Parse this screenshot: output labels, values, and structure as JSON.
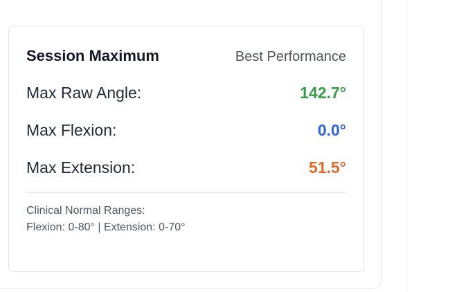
{
  "card": {
    "title": "Session Maximum",
    "subtitle": "Best Performance",
    "metrics": [
      {
        "label": "Max Raw Angle:",
        "value": "142.7°",
        "color": "#3a9b4b"
      },
      {
        "label": "Max Flexion:",
        "value": "0.0°",
        "color": "#2f63d6"
      },
      {
        "label": "Max Extension:",
        "value": "51.5°",
        "color": "#de6a2a"
      }
    ],
    "clinical": {
      "heading": "Clinical Normal Ranges:",
      "ranges": "Flexion: 0-80° | Extension: 0-70°"
    }
  }
}
